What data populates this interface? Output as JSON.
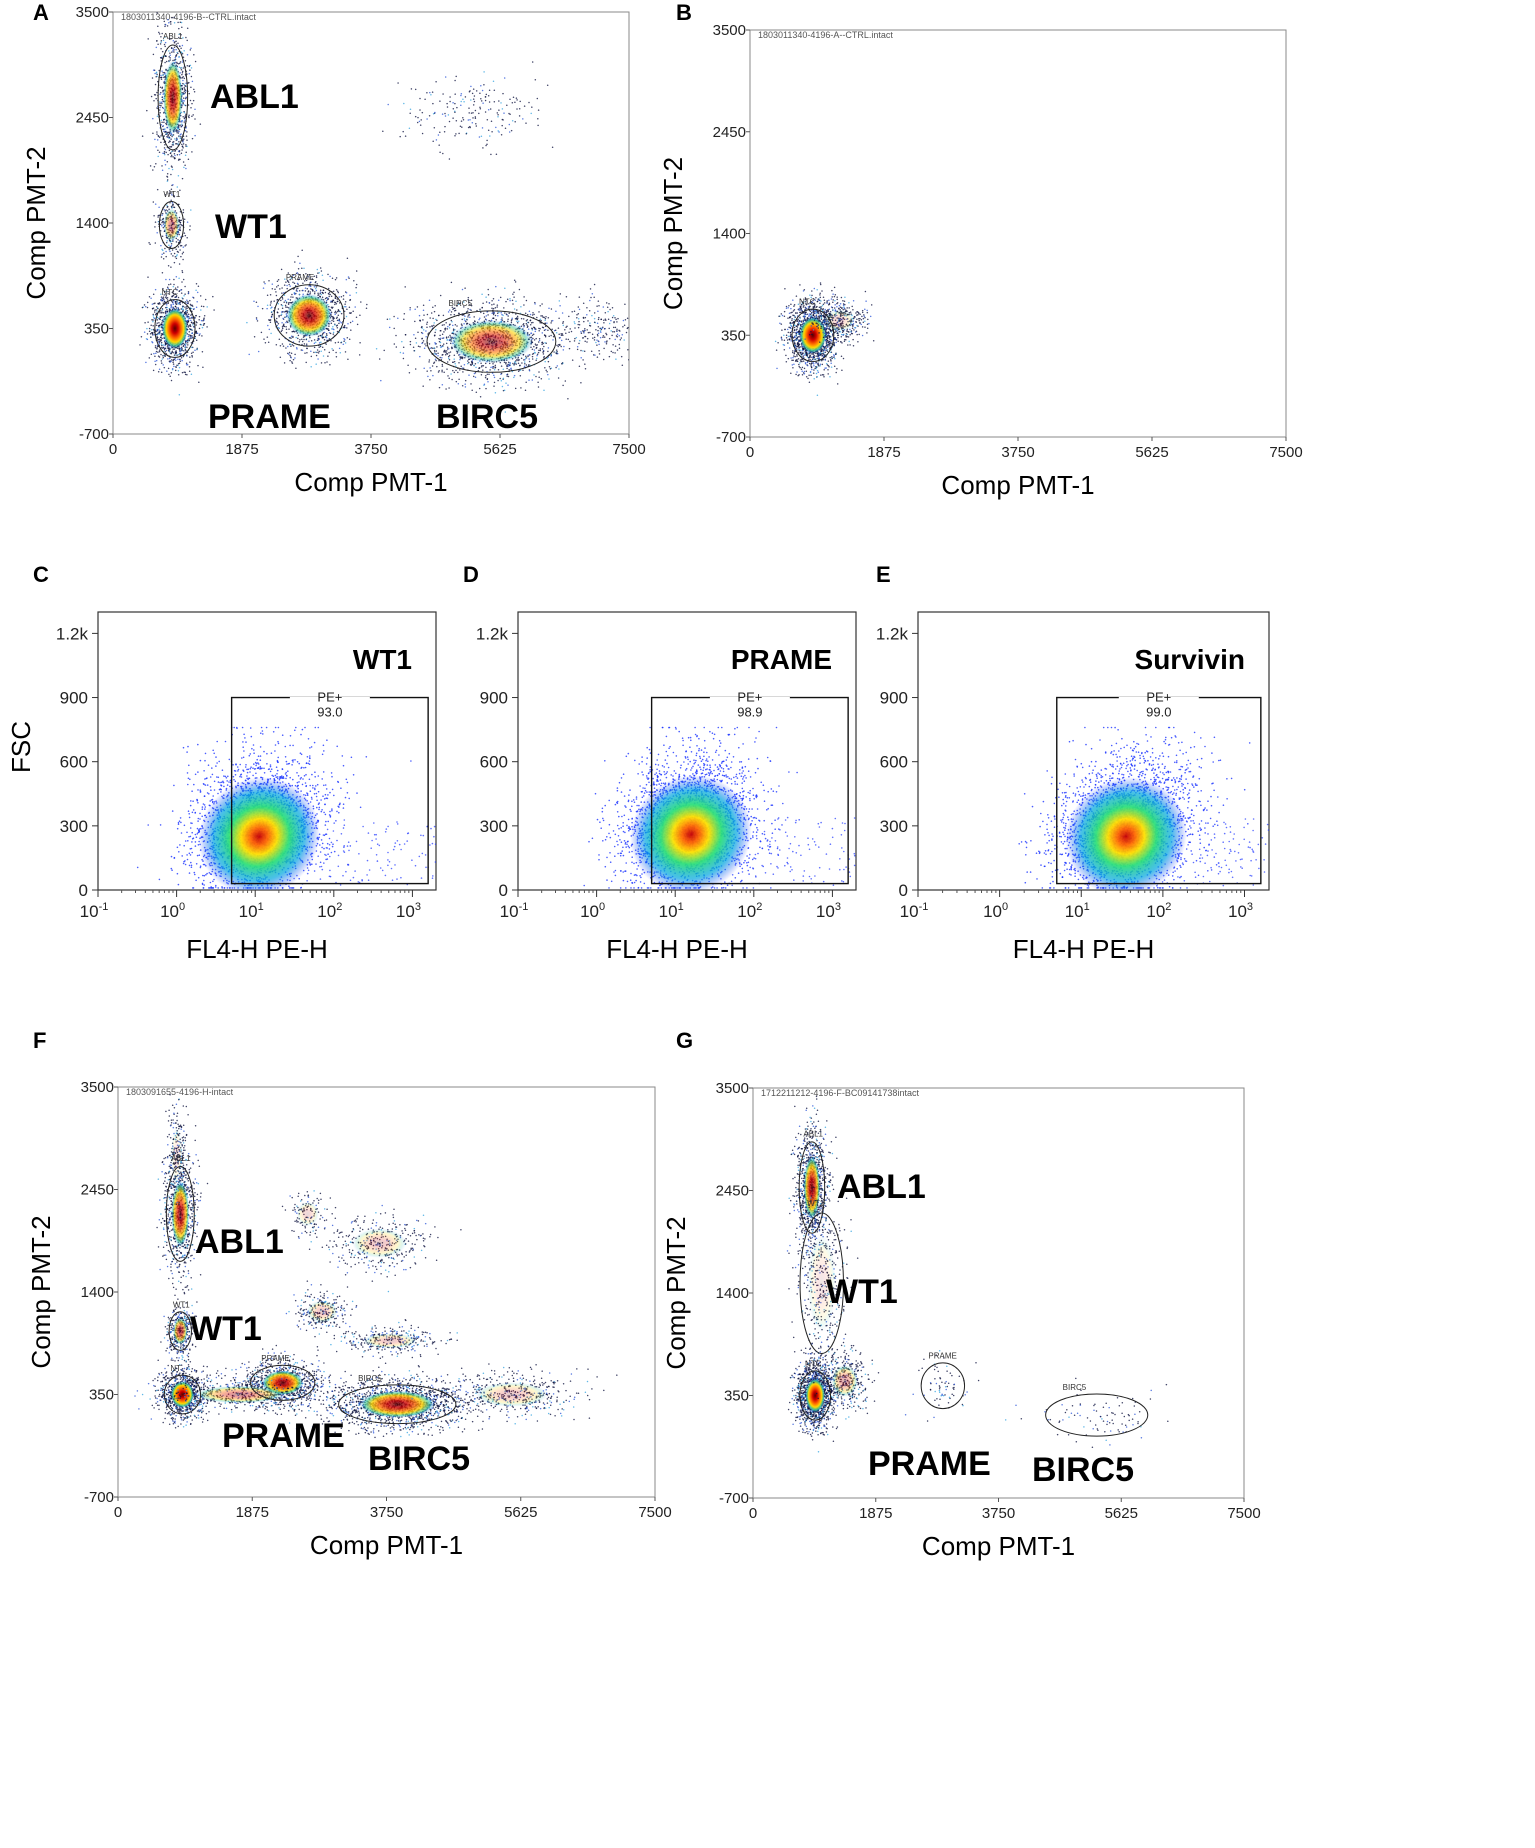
{
  "chart_data": [
    {
      "id": "A",
      "type": "scatter",
      "header": "1803011340-4196-B--CTRL.intact",
      "xlabel": "Comp PMT-1",
      "ylabel": "Comp PMT-2",
      "xlim": [
        0,
        7500
      ],
      "ylim": [
        -700,
        3500
      ],
      "xticks": [
        "0",
        "1875",
        "3750",
        "5625",
        "7500"
      ],
      "yticks": [
        "3500",
        "2450",
        "1400",
        "350",
        "-700"
      ],
      "clusters": [
        {
          "name": "ABL1",
          "gate_label": "ABL1",
          "x": 870,
          "y": 2650,
          "sx": 110,
          "sy": 290,
          "n": 900,
          "hot": 0.75
        },
        {
          "name": "WT1",
          "gate_label": "WT1",
          "x": 850,
          "y": 1380,
          "sx": 90,
          "sy": 130,
          "n": 300,
          "hot": 0.4
        },
        {
          "name": "NTC",
          "gate_label": "NTC",
          "x": 900,
          "y": 350,
          "sx": 150,
          "sy": 160,
          "n": 1200,
          "hot": 1.0
        },
        {
          "name": "PRAME",
          "gate_label": "PRAME",
          "x": 2850,
          "y": 480,
          "sx": 260,
          "sy": 170,
          "n": 1000,
          "hot": 0.8
        },
        {
          "name": "BIRC5",
          "gate_label": "BIRC5",
          "x": 5500,
          "y": 220,
          "sx": 480,
          "sy": 170,
          "n": 1500,
          "hot": 0.6
        },
        {
          "name": "",
          "gate_label": "",
          "x": 5200,
          "y": 2500,
          "sx": 420,
          "sy": 150,
          "n": 200,
          "hot": 0.0
        },
        {
          "name": "",
          "gate_label": "",
          "x": 7100,
          "y": 330,
          "sx": 260,
          "sy": 120,
          "n": 200,
          "hot": 0.0
        }
      ],
      "labels": [
        "ABL1",
        "WT1",
        "PRAME",
        "BIRC5"
      ]
    },
    {
      "id": "B",
      "type": "scatter",
      "header": "1803011340-4196-A--CTRL.intact",
      "xlabel": "Comp PMT-1",
      "ylabel": "Comp PMT-2",
      "xlim": [
        0,
        7500
      ],
      "ylim": [
        -700,
        3500
      ],
      "xticks": [
        "0",
        "1875",
        "3750",
        "5625",
        "7500"
      ],
      "yticks": [
        "3500",
        "2450",
        "1400",
        "350",
        "-700"
      ],
      "clusters": [
        {
          "name": "NTC",
          "gate_label": "NTC",
          "x": 880,
          "y": 350,
          "sx": 150,
          "sy": 150,
          "n": 1600,
          "hot": 1.0
        },
        {
          "name": "",
          "gate_label": "",
          "x": 1250,
          "y": 500,
          "sx": 170,
          "sy": 90,
          "n": 350,
          "hot": 0.15
        }
      ],
      "labels": []
    },
    {
      "id": "C",
      "type": "scatter",
      "title": "WT1",
      "ylabel": "FSC",
      "xlabel": "FL4-H PE-H",
      "xlim": [
        -1,
        3.3
      ],
      "ylim": [
        0,
        1300
      ],
      "xticks": [
        "-1",
        "0",
        "1",
        "2",
        "3"
      ],
      "yticks": [
        "0",
        "300",
        "600",
        "900",
        "1.2k"
      ],
      "gate": {
        "name": "PE+",
        "value": "93.0",
        "xmin": 0.7,
        "xmax": 3.2,
        "ymin": 30,
        "ymax": 900
      },
      "peak": {
        "x": 1.0,
        "y": 240
      }
    },
    {
      "id": "D",
      "type": "scatter",
      "title": "PRAME",
      "ylabel": "",
      "xlabel": "FL4-H PE-H",
      "xlim": [
        -1,
        3.3
      ],
      "ylim": [
        0,
        1300
      ],
      "xticks": [
        "-1",
        "0",
        "1",
        "2",
        "3"
      ],
      "yticks": [
        "0",
        "300",
        "600",
        "900",
        "1.2k"
      ],
      "gate": {
        "name": "PE+",
        "value": "98.9",
        "xmin": 0.7,
        "xmax": 3.2,
        "ymin": 30,
        "ymax": 900
      },
      "peak": {
        "x": 1.15,
        "y": 250
      }
    },
    {
      "id": "E",
      "type": "scatter",
      "title": "Survivin",
      "ylabel": "",
      "xlabel": "FL4-H PE-H",
      "xlim": [
        -1,
        3.3
      ],
      "ylim": [
        0,
        1300
      ],
      "xticks": [
        "-1",
        "0",
        "1",
        "2",
        "3"
      ],
      "yticks": [
        "0",
        "300",
        "600",
        "900",
        "1.2k"
      ],
      "gate": {
        "name": "PE+",
        "value": "99.0",
        "xmin": 0.7,
        "xmax": 3.2,
        "ymin": 30,
        "ymax": 900
      },
      "peak": {
        "x": 1.5,
        "y": 240
      }
    },
    {
      "id": "F",
      "type": "scatter",
      "header": "1803091655-4196-H-intact",
      "xlabel": "Comp PMT-1",
      "ylabel": "Comp PMT-2",
      "xlim": [
        0,
        7500
      ],
      "ylim": [
        -700,
        3500
      ],
      "xticks": [
        "0",
        "1875",
        "3750",
        "5625",
        "7500"
      ],
      "yticks": [
        "3500",
        "2450",
        "1400",
        "350",
        "-700"
      ],
      "clusters": [
        {
          "name": "ABL1",
          "gate_label": "ABL1",
          "x": 870,
          "y": 2200,
          "sx": 100,
          "sy": 270,
          "n": 800,
          "hot": 0.75
        },
        {
          "name": "WT1",
          "gate_label": "WT1",
          "x": 870,
          "y": 1000,
          "sx": 80,
          "sy": 110,
          "n": 350,
          "hot": 0.6
        },
        {
          "name": "NTC",
          "gate_label": "NT",
          "x": 900,
          "y": 350,
          "sx": 130,
          "sy": 110,
          "n": 900,
          "hot": 1.0
        },
        {
          "name": "PRAME",
          "gate_label": "PRAME",
          "x": 2300,
          "y": 470,
          "sx": 230,
          "sy": 100,
          "n": 800,
          "hot": 0.85
        },
        {
          "name": "BIRC5",
          "gate_label": "BIRC5",
          "x": 3900,
          "y": 250,
          "sx": 420,
          "sy": 110,
          "n": 1500,
          "hot": 0.8
        },
        {
          "name": "",
          "gate_label": "",
          "x": 2850,
          "y": 1200,
          "sx": 170,
          "sy": 90,
          "n": 250,
          "hot": 0.2
        },
        {
          "name": "",
          "gate_label": "",
          "x": 3650,
          "y": 1900,
          "sx": 300,
          "sy": 120,
          "n": 350,
          "hot": 0.2
        },
        {
          "name": "",
          "gate_label": "",
          "x": 3800,
          "y": 900,
          "sx": 300,
          "sy": 60,
          "n": 300,
          "hot": 0.2
        },
        {
          "name": "",
          "gate_label": "",
          "x": 5500,
          "y": 350,
          "sx": 400,
          "sy": 100,
          "n": 450,
          "hot": 0.2
        },
        {
          "name": "",
          "gate_label": "",
          "x": 2650,
          "y": 2200,
          "sx": 120,
          "sy": 100,
          "n": 120,
          "hot": 0.15
        },
        {
          "name": "",
          "gate_label": "",
          "x": 820,
          "y": 2800,
          "sx": 60,
          "sy": 230,
          "n": 200,
          "hot": 0.1
        },
        {
          "name": "",
          "gate_label": "",
          "x": 1700,
          "y": 350,
          "sx": 500,
          "sy": 70,
          "n": 500,
          "hot": 0.4
        }
      ],
      "labels": [
        "ABL1",
        "WT1",
        "PRAME",
        "BIRC5"
      ]
    },
    {
      "id": "G",
      "type": "scatter",
      "header": "1712211212-4196-F-BC09141738intact",
      "xlabel": "Comp PMT-1",
      "ylabel": "Comp PMT-2",
      "xlim": [
        0,
        7500
      ],
      "ylim": [
        -700,
        3500
      ],
      "xticks": [
        "0",
        "1875",
        "3750",
        "5625",
        "7500"
      ],
      "yticks": [
        "3500",
        "2450",
        "1400",
        "350",
        "-700"
      ],
      "clusters": [
        {
          "name": "ABL1",
          "gate_label": "ABL1",
          "x": 900,
          "y": 2480,
          "sx": 100,
          "sy": 260,
          "n": 1000,
          "hot": 0.8
        },
        {
          "name": "WT1",
          "gate_label": "WT1",
          "x": 1050,
          "y": 1500,
          "sx": 170,
          "sy": 400,
          "n": 450,
          "hot": 0.1
        },
        {
          "name": "NTC",
          "gate_label": "NTC",
          "x": 950,
          "y": 350,
          "sx": 120,
          "sy": 140,
          "n": 1400,
          "hot": 1.0
        },
        {
          "name": "PRAME",
          "gate_label": "PRAME",
          "x": 2900,
          "y": 450,
          "sx": 170,
          "sy": 130,
          "n": 70,
          "hot": 0.0
        },
        {
          "name": "BIRC5",
          "gate_label": "BIRC5",
          "x": 5250,
          "y": 150,
          "sx": 400,
          "sy": 120,
          "n": 90,
          "hot": 0.0
        },
        {
          "name": "",
          "gate_label": "",
          "x": 1400,
          "y": 500,
          "sx": 160,
          "sy": 130,
          "n": 350,
          "hot": 0.3
        }
      ],
      "labels": [
        "ABL1",
        "WT1",
        "PRAME",
        "BIRC5"
      ]
    }
  ]
}
